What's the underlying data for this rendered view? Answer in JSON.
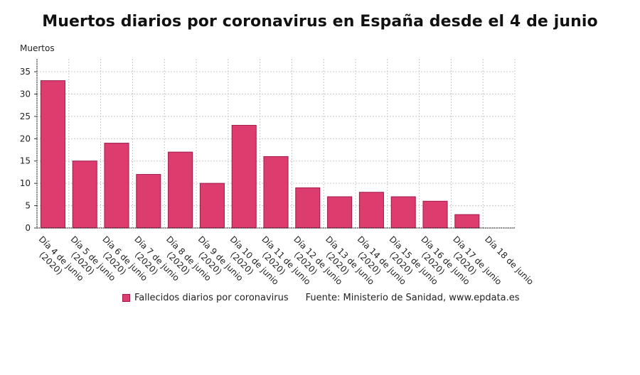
{
  "chart_data": {
    "type": "bar",
    "title": "Muertos diarios por coronavirus en España desde el 4 de junio",
    "xlabel": "",
    "ylabel": "Muertos",
    "ylim": [
      0,
      37
    ],
    "yticks": [
      0,
      5,
      10,
      15,
      20,
      25,
      30,
      35
    ],
    "grid": true,
    "categories": [
      [
        "Día 4 de junio",
        "(2020)"
      ],
      [
        "Día 5 de junio",
        "(2020)"
      ],
      [
        "Día 6 de junio",
        "(2020)"
      ],
      [
        "Día 7 de junio",
        "(2020)"
      ],
      [
        "Día 8 de junio",
        "(2020)"
      ],
      [
        "Día 9 de junio",
        "(2020)"
      ],
      [
        "Día 10 de junio",
        "(2020)"
      ],
      [
        "Día 11 de junio",
        "(2020)"
      ],
      [
        "Día 12 de junio",
        "(2020)"
      ],
      [
        "Día 13 de junio",
        "(2020)"
      ],
      [
        "Día 14 de junio",
        "(2020)"
      ],
      [
        "Día 15 de junio",
        "(2020)"
      ],
      [
        "Día 16 de junio",
        "(2020)"
      ],
      [
        "Día 17 de junio",
        "(2020)"
      ],
      [
        "Día 18 de junio"
      ]
    ],
    "series": [
      {
        "name": "Fallecidos diarios por coronavirus",
        "color": "#dd3d6e",
        "values": [
          33,
          15,
          19,
          12,
          17,
          10,
          23,
          16,
          9,
          7,
          8,
          7,
          6,
          3,
          0
        ]
      }
    ],
    "legend_position": "bottom",
    "source": "Fuente: Ministerio de Sanidad, www.epdata.es"
  }
}
